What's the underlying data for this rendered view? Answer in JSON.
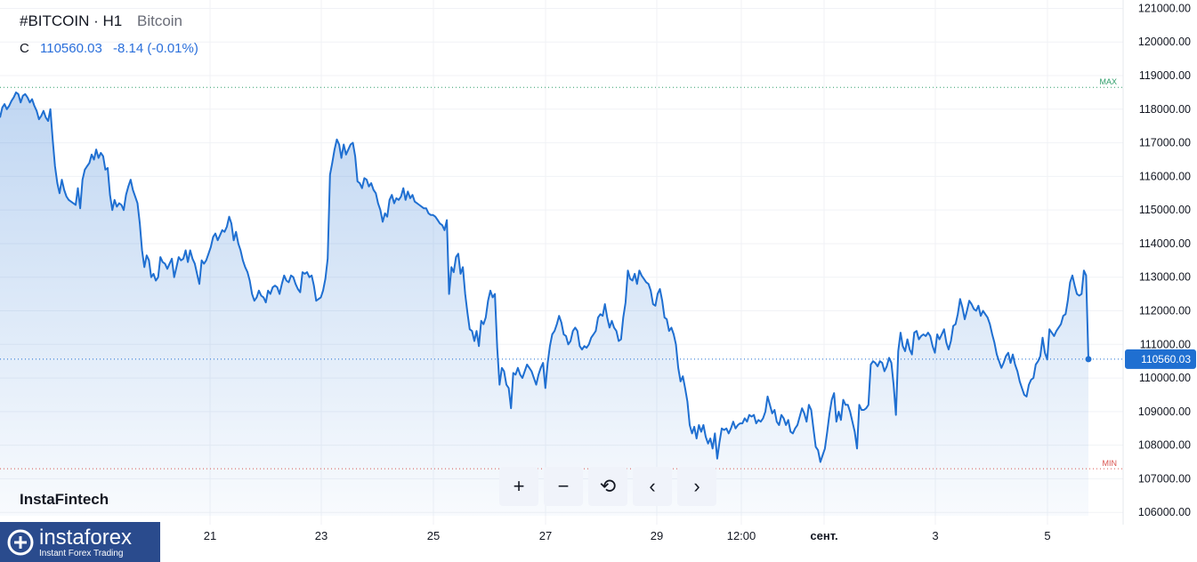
{
  "header": {
    "symbol": "#BITCOIN · H1",
    "description": "Bitcoin"
  },
  "ohlc": {
    "label": "C",
    "value": "110560.03",
    "change": "-8.14 (-0.01%)"
  },
  "brand": "InstaFintech",
  "logo": {
    "word": "instaforex",
    "sub": "Instant Forex Trading"
  },
  "toolbar": {
    "zoom_in": "+",
    "zoom_out": "−",
    "reset": "⟲",
    "prev": "‹",
    "next": "›"
  },
  "colors": {
    "line": "#1f6fd1",
    "max_line": "#2e9e6a",
    "min_line": "#d9534f",
    "current": "#1f6fd1"
  },
  "chart_data": {
    "type": "area",
    "x_ticks": [
      "21",
      "23",
      "25",
      "27",
      "29",
      "12:00",
      "сент.",
      "3",
      "5"
    ],
    "x_ticks_bold": [
      "сент."
    ],
    "y_ticks": [
      "121000.00",
      "120000.00",
      "119000.00",
      "118000.00",
      "117000.00",
      "116000.00",
      "115000.00",
      "114000.00",
      "113000.00",
      "112000.00",
      "111000.00",
      "110000.00",
      "109000.00",
      "108000.00",
      "107000.00",
      "106000.00"
    ],
    "ylim": [
      105900,
      121250
    ],
    "max_label": "MAX",
    "max_value": 118650,
    "min_label": "MIN",
    "min_value": 107300,
    "current_label": "110560.03",
    "current_value": 110560.03,
    "values": [
      117750,
      118050,
      118150,
      118000,
      118100,
      118250,
      118350,
      118500,
      118450,
      118200,
      118400,
      118450,
      118350,
      118200,
      118300,
      118100,
      117950,
      117700,
      117800,
      117950,
      117750,
      117650,
      118000,
      117100,
      116300,
      115800,
      115500,
      115900,
      115600,
      115400,
      115300,
      115250,
      115200,
      115150,
      115650,
      115050,
      115900,
      116200,
      116300,
      116400,
      116650,
      116500,
      116800,
      116550,
      116700,
      116600,
      116200,
      116250,
      115450,
      115000,
      115300,
      115100,
      115200,
      115150,
      115000,
      115450,
      115700,
      115900,
      115600,
      115400,
      115200,
      114600,
      113800,
      113300,
      113650,
      113500,
      113000,
      113100,
      112900,
      113000,
      113600,
      113450,
      113400,
      113250,
      113400,
      113550,
      113000,
      113300,
      113600,
      113500,
      113550,
      113800,
      113450,
      113800,
      113550,
      113400,
      113100,
      112800,
      113500,
      113400,
      113500,
      113700,
      113900,
      114200,
      114300,
      114100,
      114250,
      114400,
      114350,
      114500,
      114800,
      114600,
      114100,
      114350,
      114000,
      113800,
      113500,
      113300,
      113150,
      112900,
      112500,
      112300,
      112400,
      112600,
      112450,
      112400,
      112250,
      112600,
      112500,
      112700,
      112750,
      112700,
      112500,
      112800,
      113050,
      112900,
      112850,
      113050,
      113000,
      112800,
      112650,
      112550,
      113150,
      113100,
      113150,
      113000,
      113050,
      112750,
      112300,
      112350,
      112400,
      112600,
      112950,
      113550,
      116050,
      116400,
      116800,
      117100,
      116950,
      116550,
      116950,
      116650,
      116800,
      116950,
      117000,
      116600,
      115850,
      115800,
      115650,
      115950,
      115900,
      115700,
      115800,
      115600,
      115500,
      115200,
      115000,
      114650,
      114900,
      114800,
      115300,
      115450,
      115200,
      115350,
      115300,
      115400,
      115650,
      115300,
      115550,
      115350,
      115450,
      115250,
      115200,
      115150,
      115100,
      115050,
      115050,
      114900,
      114850,
      114850,
      114800,
      114700,
      114600,
      114550,
      114400,
      114700,
      112500,
      113300,
      113150,
      113600,
      113700,
      113100,
      113300,
      112500,
      111950,
      111450,
      111400,
      111100,
      111400,
      110950,
      111700,
      111600,
      111800,
      112300,
      112600,
      112400,
      112500,
      110900,
      109800,
      110300,
      110200,
      109800,
      109700,
      109100,
      110150,
      110100,
      110300,
      110100,
      110000,
      110200,
      110400,
      110300,
      110200,
      110000,
      109800,
      110100,
      110300,
      110450,
      109700,
      110450,
      110950,
      111300,
      111400,
      111600,
      111850,
      111650,
      111300,
      111250,
      111000,
      111100,
      111400,
      111500,
      111400,
      110950,
      110850,
      110950,
      110900,
      111000,
      111200,
      111300,
      111400,
      111800,
      111900,
      111850,
      112200,
      111800,
      111500,
      111700,
      111500,
      111400,
      111100,
      111150,
      111800,
      112250,
      113200,
      112950,
      112900,
      113100,
      112800,
      113200,
      113050,
      112950,
      112850,
      112800,
      112600,
      112200,
      112150,
      112500,
      112650,
      112300,
      111800,
      111750,
      111400,
      111500,
      111300,
      111000,
      110300,
      109900,
      110050,
      109700,
      109300,
      108600,
      108350,
      108550,
      108200,
      108600,
      108400,
      108600,
      108250,
      108050,
      108200,
      107900,
      108350,
      107600,
      108100,
      108500,
      108450,
      108500,
      108350,
      108500,
      108700,
      108500,
      108600,
      108650,
      108650,
      108800,
      108700,
      108900,
      108850,
      108900,
      108650,
      108750,
      108700,
      108800,
      109000,
      109450,
      109200,
      108950,
      109050,
      108700,
      108600,
      108900,
      108800,
      108600,
      108750,
      108400,
      108350,
      108500,
      108600,
      108850,
      109100,
      108950,
      108700,
      109200,
      109050,
      108500,
      107950,
      107850,
      107500,
      107700,
      107900,
      108400,
      108950,
      109350,
      109550,
      108700,
      109000,
      108750,
      109350,
      109200,
      109200,
      109000,
      108700,
      108400,
      107900,
      109200,
      109050,
      109050,
      109100,
      109200,
      110400,
      110500,
      110450,
      110350,
      110500,
      110450,
      110200,
      110350,
      110600,
      110450,
      109800,
      108900,
      110800,
      111350,
      110950,
      110800,
      111150,
      110850,
      110700,
      111350,
      111400,
      111150,
      111250,
      111300,
      111250,
      111350,
      111250,
      110950,
      110750,
      111300,
      111150,
      111300,
      111450,
      111050,
      110850,
      111100,
      111550,
      111600,
      111900,
      112350,
      112100,
      111750,
      112000,
      112300,
      112200,
      112050,
      112000,
      112150,
      111850,
      112000,
      111900,
      111800,
      111600,
      111300,
      111050,
      110700,
      110500,
      110300,
      110450,
      110650,
      110750,
      110450,
      110700,
      110400,
      110200,
      109900,
      109700,
      109500,
      109450,
      109800,
      109950,
      110000,
      110400,
      110500,
      110650,
      111200,
      110750,
      110550,
      111450,
      111350,
      111250,
      111400,
      111500,
      111600,
      111850,
      111900,
      112300,
      112850,
      113050,
      112750,
      112500,
      112450,
      112500,
      113200,
      113050,
      110550
    ]
  }
}
